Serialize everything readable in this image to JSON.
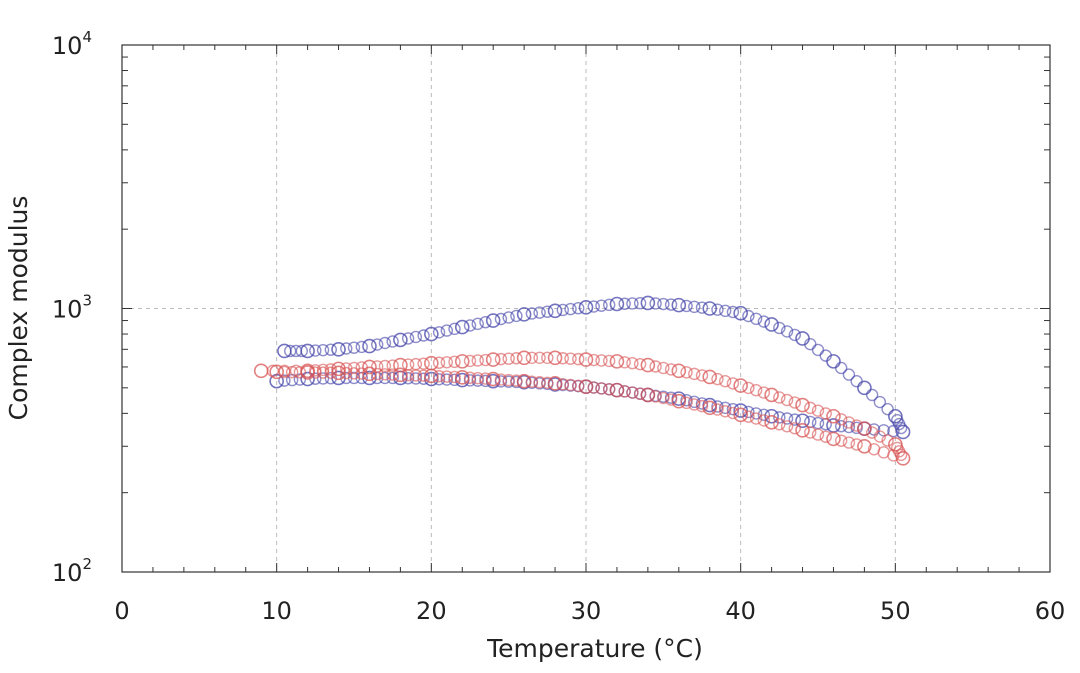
{
  "chart_data": {
    "type": "scatter",
    "title": "",
    "xlabel": "Temperature (°C)",
    "ylabel": "Complex modulus",
    "xlim": [
      0,
      60
    ],
    "ylim": [
      100,
      10000
    ],
    "yscale": "log",
    "grid": true,
    "x_ticks": [
      "0",
      "10",
      "20",
      "30",
      "40",
      "50",
      "60"
    ],
    "y_ticks": [
      {
        "base": "10",
        "exp": "2"
      },
      {
        "base": "10",
        "exp": "3"
      },
      {
        "base": "10",
        "exp": "4"
      }
    ],
    "series": [
      {
        "color": "#4444aa",
        "x": [
          10.5,
          12,
          14,
          16,
          18,
          20,
          22,
          24,
          26,
          28,
          30,
          32,
          34,
          36,
          38,
          40,
          42,
          44,
          46,
          48,
          50,
          50.5,
          48,
          46,
          44,
          42,
          40,
          38,
          36,
          34,
          32,
          30,
          28,
          26,
          24,
          22,
          20,
          18,
          16,
          14,
          12,
          10
        ],
        "y": [
          690,
          690,
          700,
          720,
          760,
          800,
          850,
          900,
          950,
          980,
          1010,
          1040,
          1050,
          1030,
          1000,
          960,
          870,
          770,
          630,
          500,
          390,
          340,
          350,
          360,
          375,
          390,
          410,
          430,
          455,
          470,
          490,
          505,
          515,
          525,
          530,
          535,
          540,
          545,
          545,
          545,
          540,
          530
        ]
      },
      {
        "color": "#d85555",
        "x": [
          9,
          12,
          14,
          16,
          18,
          20,
          22,
          24,
          26,
          28,
          30,
          32,
          34,
          36,
          38,
          40,
          42,
          44,
          46,
          48,
          50,
          50.5,
          48,
          46,
          44,
          42,
          40,
          38,
          36,
          34,
          32,
          30,
          28,
          26,
          24,
          22,
          20,
          18,
          16,
          14,
          12,
          10
        ],
        "y": [
          580,
          580,
          590,
          600,
          610,
          620,
          630,
          640,
          650,
          650,
          640,
          630,
          610,
          580,
          550,
          510,
          470,
          430,
          390,
          350,
          305,
          270,
          300,
          320,
          345,
          370,
          395,
          420,
          445,
          470,
          490,
          505,
          520,
          530,
          540,
          548,
          555,
          560,
          565,
          570,
          572,
          575
        ]
      }
    ]
  }
}
